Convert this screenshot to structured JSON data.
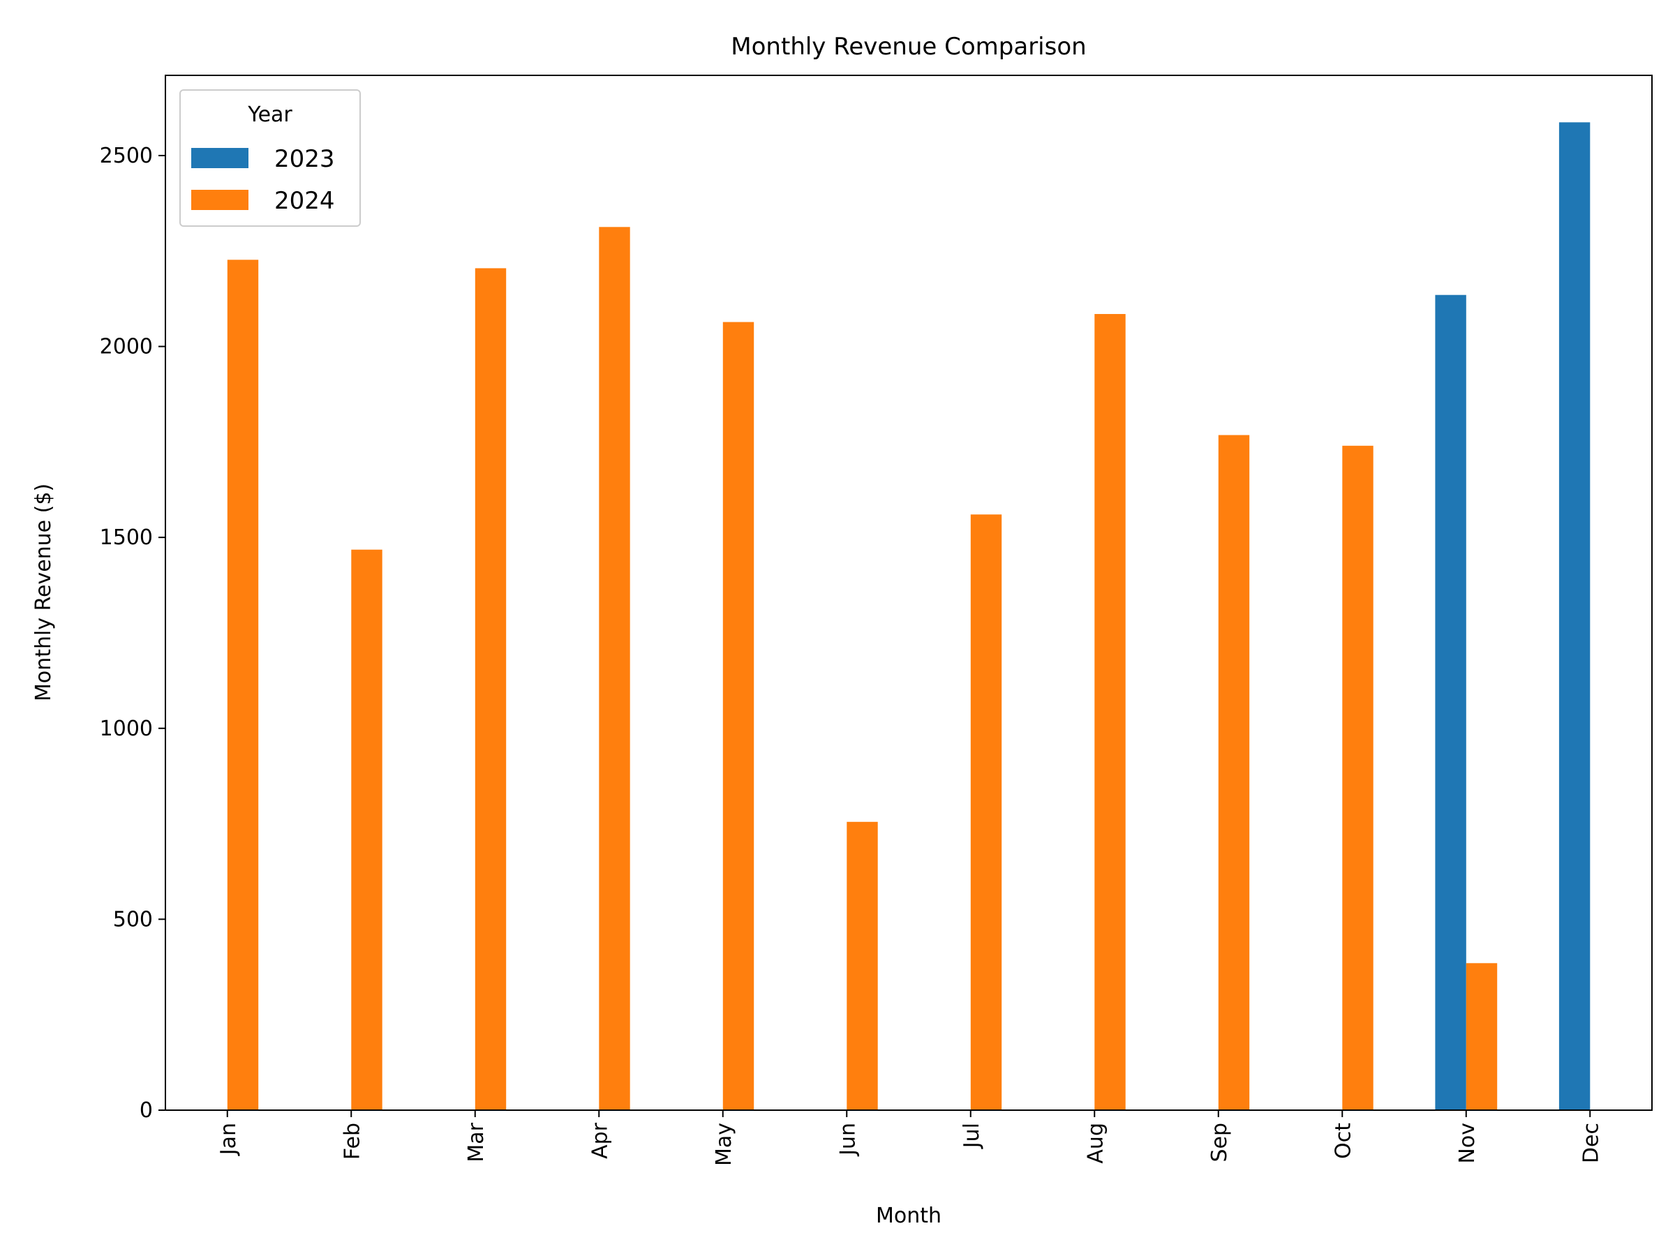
{
  "chart_data": {
    "type": "bar",
    "title": "Monthly Revenue Comparison",
    "xlabel": "Month",
    "ylabel": "Monthly Revenue ($)",
    "ylim": [
      0,
      2710
    ],
    "yticks": [
      0,
      500,
      1000,
      1500,
      2000,
      2500
    ],
    "categories": [
      "Jan",
      "Feb",
      "Mar",
      "Apr",
      "May",
      "Jun",
      "Jul",
      "Aug",
      "Sep",
      "Oct",
      "Nov",
      "Dec"
    ],
    "series": [
      {
        "name": "2023",
        "color": "#1f77b4",
        "values": [
          0,
          0,
          0,
          0,
          0,
          0,
          0,
          0,
          0,
          0,
          2135,
          2587
        ]
      },
      {
        "name": "2024",
        "color": "#ff7f0e",
        "values": [
          2227,
          1468,
          2205,
          2313,
          2064,
          755,
          1560,
          2085,
          1768,
          1740,
          385,
          0
        ]
      }
    ],
    "legend": {
      "title": "Year",
      "position": "upper-left"
    },
    "grid": false
  }
}
